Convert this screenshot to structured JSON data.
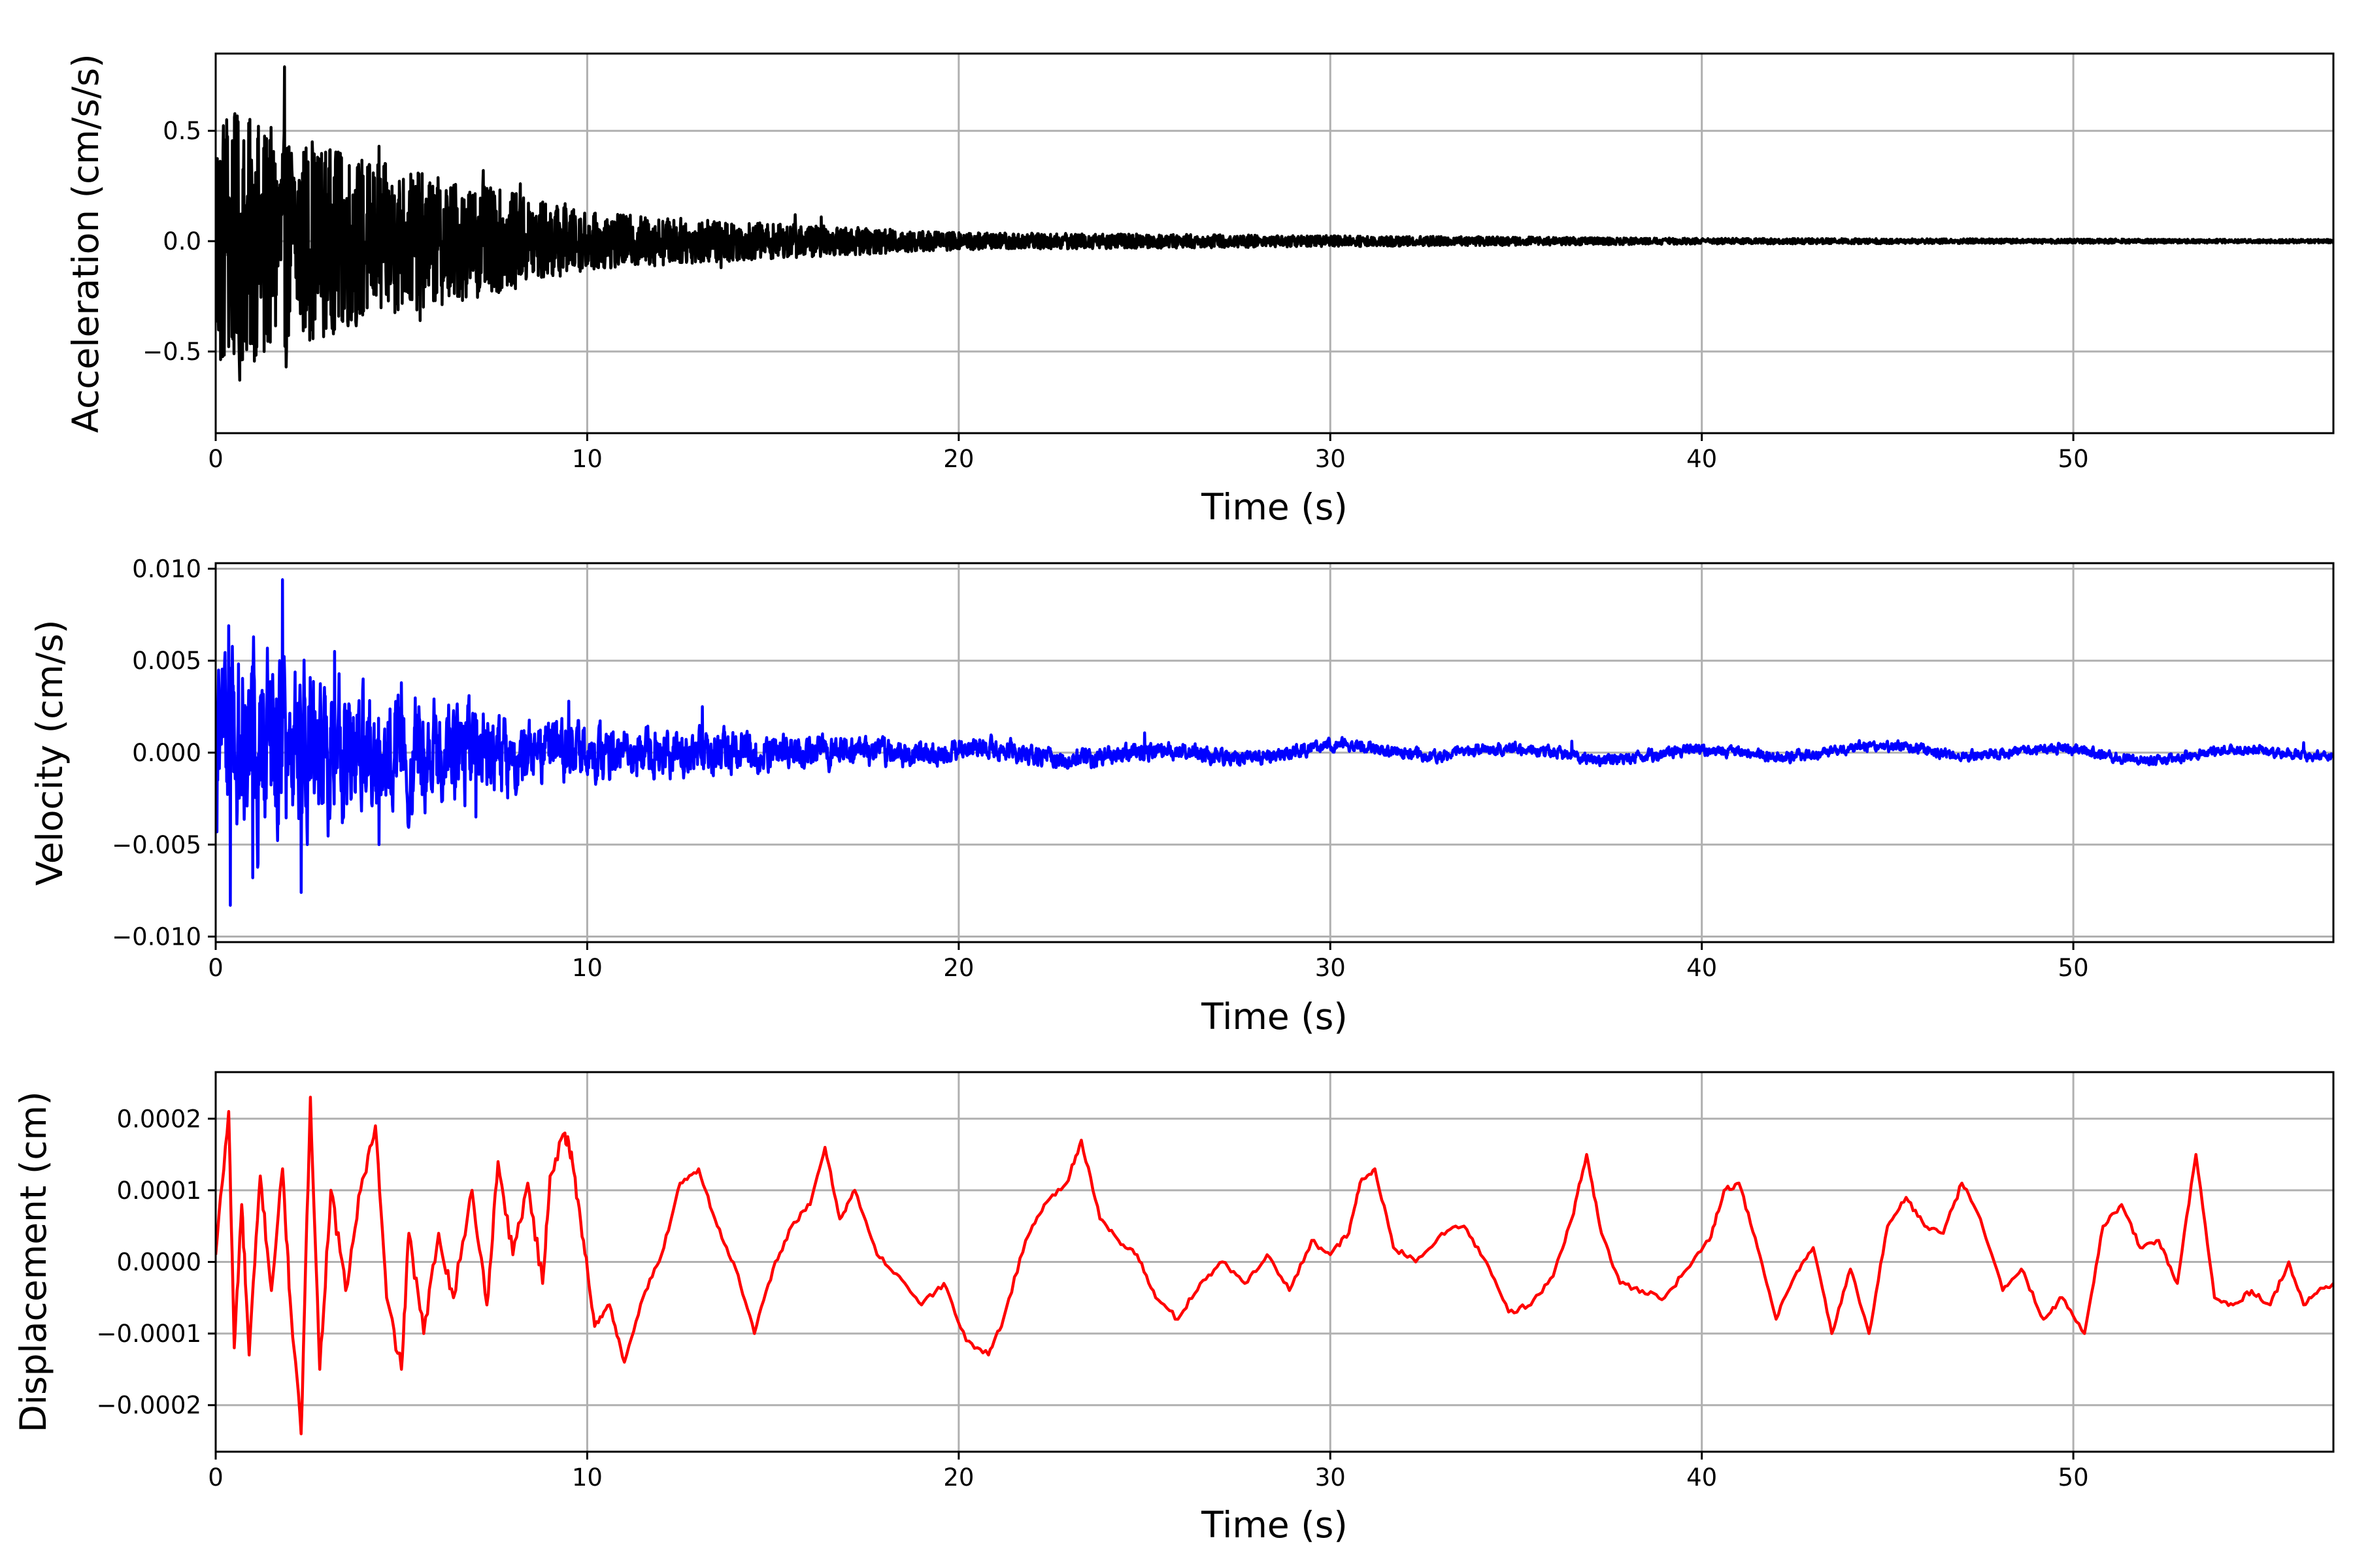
{
  "chart_data": [
    {
      "type": "line",
      "xlabel": "Time (s)",
      "ylabel": "Acceleration (cm/s/s)",
      "xlim": [
        0,
        57
      ],
      "ylim": [
        -0.87,
        0.85
      ],
      "xticks": [
        0,
        10,
        20,
        30,
        40,
        50
      ],
      "xtick_labels": [
        "0",
        "10",
        "20",
        "30",
        "40",
        "50"
      ],
      "yticks": [
        -0.5,
        0.0,
        0.5
      ],
      "ytick_labels": [
        "−0.5",
        "0.0",
        "0.5"
      ],
      "grid": true,
      "color": "#000000",
      "envelope": {
        "decay_points": [
          [
            0,
            0.62
          ],
          [
            2,
            0.48
          ],
          [
            5,
            0.33
          ],
          [
            8,
            0.22
          ],
          [
            10,
            0.13
          ],
          [
            15,
            0.08
          ],
          [
            20,
            0.04
          ],
          [
            30,
            0.025
          ],
          [
            40,
            0.013
          ],
          [
            57,
            0.008
          ]
        ],
        "peaks": [
          [
            0.3,
            0.55
          ],
          [
            0.65,
            -0.63
          ],
          [
            1.3,
            -0.5
          ],
          [
            1.85,
            0.79
          ],
          [
            1.9,
            -0.57
          ],
          [
            2.6,
            0.45
          ],
          [
            3.2,
            -0.4
          ],
          [
            4.4,
            0.43
          ],
          [
            5.5,
            -0.36
          ],
          [
            7.2,
            0.32
          ],
          [
            8.2,
            0.26
          ],
          [
            9.4,
            0.17
          ],
          [
            10.3,
            -0.12
          ],
          [
            13.6,
            -0.12
          ],
          [
            15.6,
            0.12
          ],
          [
            16.3,
            0.11
          ]
        ]
      }
    },
    {
      "type": "line",
      "xlabel": "Time (s)",
      "ylabel": "Velocity (cm/s)",
      "xlim": [
        0,
        57
      ],
      "ylim": [
        -0.0103,
        0.0103
      ],
      "xticks": [
        0,
        10,
        20,
        30,
        40,
        50
      ],
      "xtick_labels": [
        "0",
        "10",
        "20",
        "30",
        "40",
        "50"
      ],
      "yticks": [
        -0.01,
        -0.005,
        0.0,
        0.005,
        0.01
      ],
      "ytick_labels": [
        "−0.010",
        "−0.005",
        "0.000",
        "0.005",
        "0.010"
      ],
      "grid": true,
      "color": "#0000ff",
      "envelope": {
        "decay_points": [
          [
            0,
            0.0055
          ],
          [
            2,
            0.005
          ],
          [
            4,
            0.0035
          ],
          [
            7,
            0.0025
          ],
          [
            10,
            0.0015
          ],
          [
            15,
            0.001
          ],
          [
            20,
            0.0006
          ],
          [
            30,
            0.00035
          ],
          [
            40,
            0.0003
          ],
          [
            57,
            0.00025
          ]
        ],
        "peaks": [
          [
            0.35,
            0.0069
          ],
          [
            0.4,
            -0.0083
          ],
          [
            1.8,
            0.0094
          ],
          [
            2.3,
            -0.0076
          ],
          [
            1.0,
            -0.0068
          ],
          [
            3.2,
            0.0055
          ],
          [
            4.4,
            -0.005
          ],
          [
            5.0,
            0.0038
          ],
          [
            7.0,
            -0.0035
          ],
          [
            9.5,
            0.0028
          ],
          [
            13.1,
            0.0025
          ],
          [
            25.0,
            0.001
          ],
          [
            36.5,
            0.0008
          ],
          [
            56.2,
            0.0007
          ]
        ]
      }
    },
    {
      "type": "line",
      "xlabel": "Time (s)",
      "ylabel": "Displacement (cm)",
      "xlim": [
        0,
        57
      ],
      "ylim": [
        -0.000265,
        0.000265
      ],
      "xticks": [
        0,
        10,
        20,
        30,
        40,
        50
      ],
      "xtick_labels": [
        "0",
        "10",
        "20",
        "30",
        "40",
        "50"
      ],
      "yticks": [
        -0.0002,
        -0.0001,
        0.0,
        0.0001,
        0.0002
      ],
      "ytick_labels": [
        "−0.0002",
        "−0.0001",
        "0.0000",
        "0.0001",
        "0.0002"
      ],
      "grid": true,
      "color": "#ff0000",
      "x": [
        0,
        0.35,
        0.5,
        0.7,
        0.9,
        1.2,
        1.5,
        1.8,
        2.0,
        2.3,
        2.55,
        2.8,
        3.1,
        3.5,
        3.9,
        4.3,
        4.6,
        5.0,
        5.2,
        5.6,
        6.0,
        6.4,
        6.9,
        7.3,
        7.6,
        8.0,
        8.4,
        8.8,
        9.0,
        9.4,
        9.6,
        9.9,
        10.2,
        10.6,
        11.0,
        11.5,
        12.0,
        12.5,
        13.0,
        13.5,
        14.0,
        14.5,
        15.0,
        15.5,
        16.0,
        16.4,
        16.8,
        17.2,
        17.8,
        18.4,
        19.0,
        19.6,
        20.2,
        20.8,
        21.2,
        21.8,
        22.3,
        22.9,
        23.3,
        23.8,
        24.3,
        24.8,
        25.3,
        25.9,
        26.5,
        27.1,
        27.7,
        28.3,
        28.9,
        29.5,
        30.0,
        30.5,
        30.8,
        31.2,
        31.7,
        32.3,
        33.0,
        33.6,
        34.2,
        34.8,
        35.4,
        36.0,
        36.5,
        36.9,
        37.3,
        37.8,
        38.4,
        39.0,
        39.6,
        40.2,
        40.6,
        41.0,
        41.5,
        42.0,
        42.5,
        43.0,
        43.5,
        44.0,
        44.5,
        45.0,
        45.5,
        46.0,
        46.5,
        47.0,
        47.5,
        48.1,
        48.6,
        49.2,
        49.7,
        50.3,
        50.8,
        51.3,
        51.8,
        52.3,
        52.8,
        53.3,
        53.8,
        54.3,
        54.8,
        55.3,
        55.8,
        56.2,
        56.6,
        57.0
      ],
      "y": [
        1e-05,
        0.00021,
        -0.00012,
        8e-05,
        -0.00013,
        0.00012,
        -4e-05,
        0.00013,
        -5e-05,
        -0.00024,
        0.00023,
        -0.00015,
        0.0001,
        -4e-05,
        0.0001,
        0.00019,
        -5e-05,
        -0.00015,
        4e-05,
        -0.0001,
        4e-05,
        -5e-05,
        0.0001,
        -6e-05,
        0.00014,
        1e-05,
        0.00011,
        -3e-05,
        0.00012,
        0.00018,
        0.00014,
        3e-05,
        -9e-05,
        -6e-05,
        -0.00014,
        -5e-05,
        1e-05,
        0.00011,
        0.00013,
        5e-05,
        -1e-05,
        -0.0001,
        -1e-05,
        5e-05,
        8e-05,
        0.00016,
        6e-05,
        0.0001,
        1e-05,
        -2e-05,
        -6e-05,
        -3e-05,
        -0.00011,
        -0.00013,
        -8e-05,
        3e-05,
        8e-05,
        0.00011,
        0.00017,
        6e-05,
        3e-05,
        1e-05,
        -5e-05,
        -8e-05,
        -3e-05,
        0.0,
        -3e-05,
        1e-05,
        -4e-05,
        3e-05,
        1e-05,
        4e-05,
        0.00011,
        0.00013,
        2e-05,
        0.0,
        4e-05,
        5e-05,
        0.0,
        -7e-05,
        -6e-05,
        -2e-05,
        6e-05,
        0.00015,
        4e-05,
        -3e-05,
        -4e-05,
        -5e-05,
        -1e-05,
        3e-05,
        0.0001,
        0.00011,
        2e-05,
        -8e-05,
        -2e-05,
        2e-05,
        -0.0001,
        -1e-05,
        -0.0001,
        5e-05,
        9e-05,
        5e-05,
        4e-05,
        0.00011,
        6e-05,
        -4e-05,
        -1e-05,
        -8e-05,
        -5e-05,
        -0.0001,
        5e-05,
        8e-05,
        2e-05,
        3e-05,
        -3e-05,
        0.00015,
        -5e-05,
        -6e-05,
        -4e-05,
        -6e-05,
        0.0,
        -6e-05,
        -4e-05,
        -3e-05
      ]
    }
  ]
}
